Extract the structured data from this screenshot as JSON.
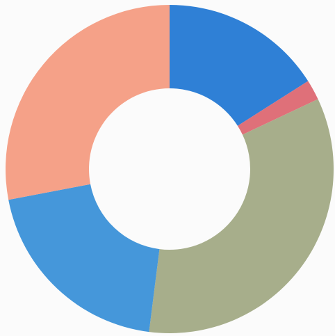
{
  "chart_data": {
    "type": "donut",
    "values": [
      16,
      2,
      34,
      20,
      28
    ],
    "colors": [
      "#2f80d6",
      "#df7079",
      "#a7ae8b",
      "#4597da",
      "#f5a188"
    ]
  }
}
